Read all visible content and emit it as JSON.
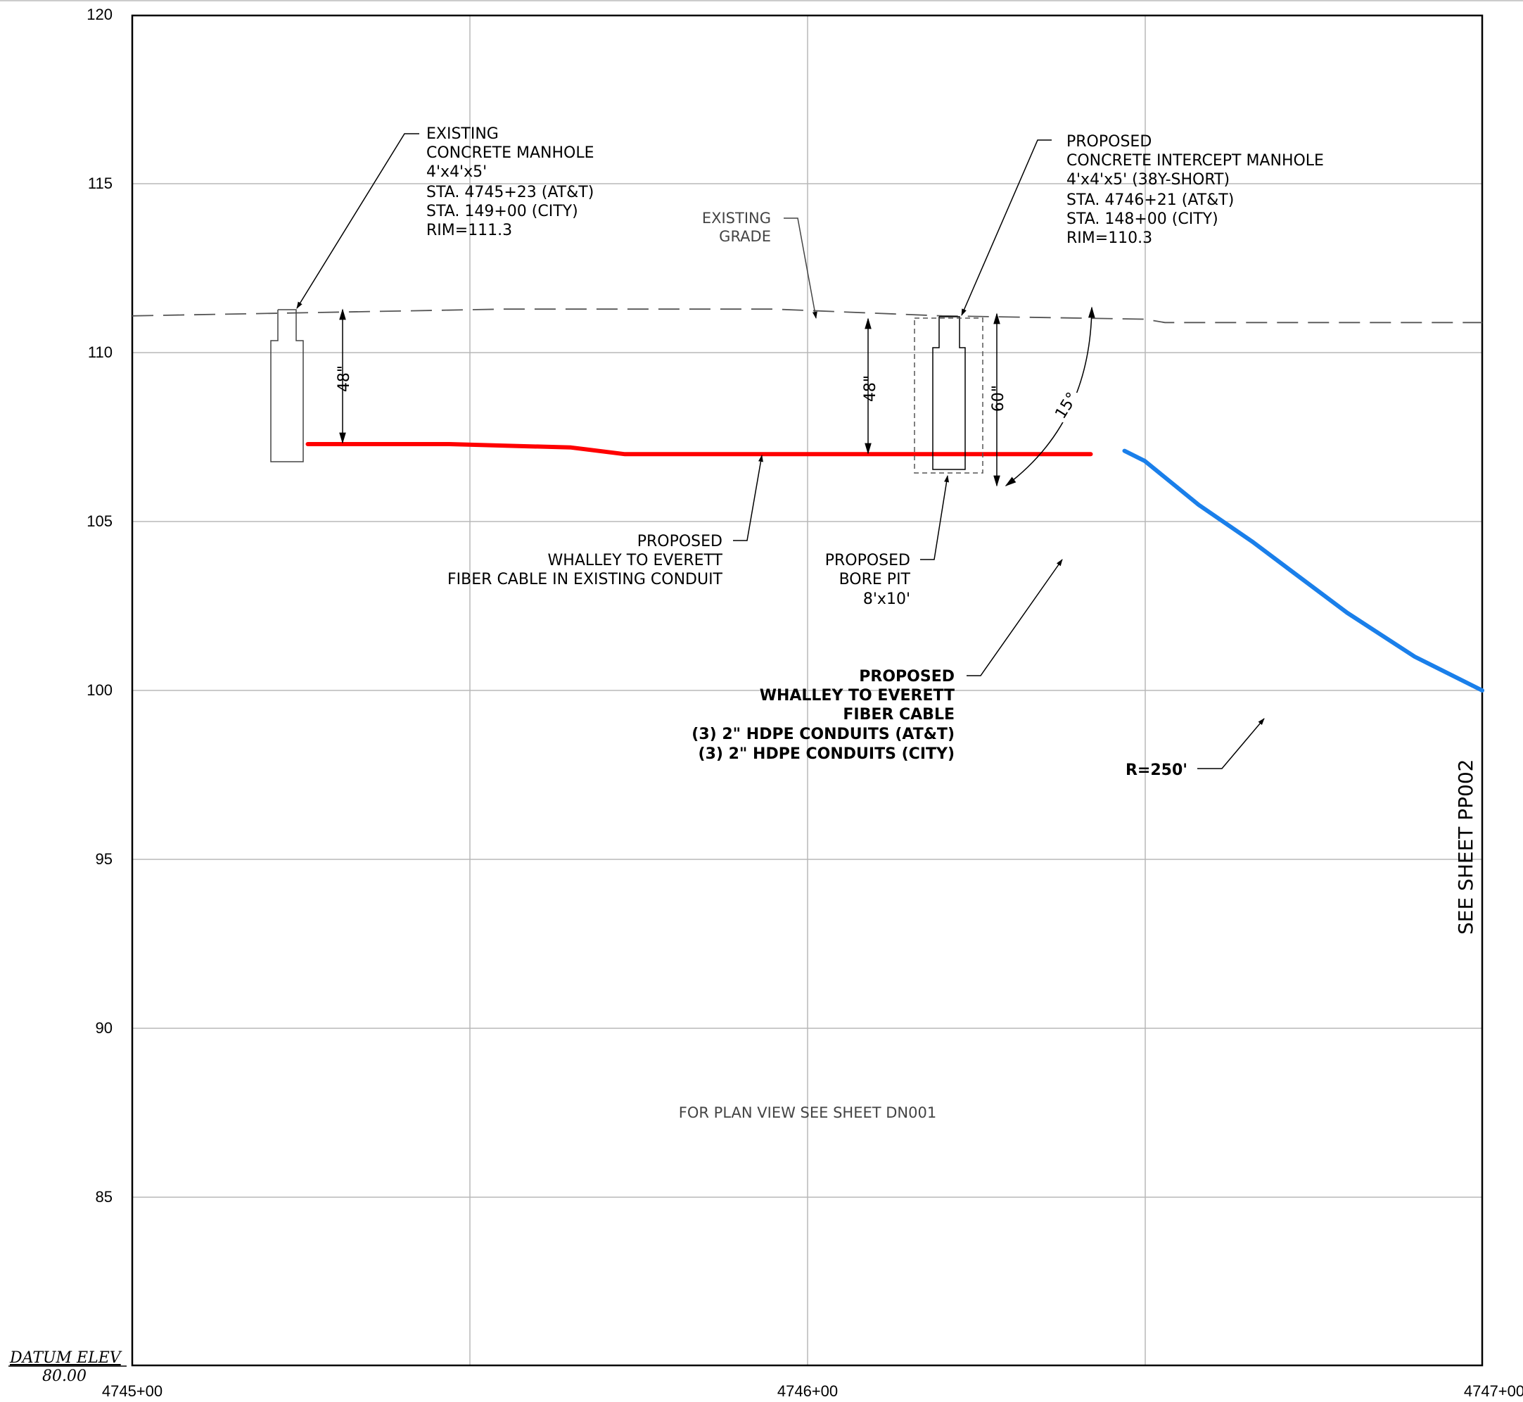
{
  "chart_data": {
    "type": "line",
    "x_range": [
      "4745+00",
      "4747+00"
    ],
    "y_range": [
      80,
      120
    ],
    "x_ticks": [
      "4745+00",
      "4746+00",
      "4747+00"
    ],
    "y_ticks": [
      "120",
      "115",
      "110",
      "105",
      "100",
      "95",
      "90",
      "85"
    ],
    "datum": {
      "label": "DATUM ELEV",
      "value": "80.00"
    },
    "grid": true,
    "series": [
      {
        "role": "existing-grade",
        "color": "#555555",
        "points": [
          [
            4745.0,
            111.1
          ],
          [
            4745.55,
            111.3
          ],
          [
            4745.95,
            111.3
          ],
          [
            4746.2,
            111.1
          ],
          [
            4746.5,
            111.0
          ],
          [
            4746.53,
            110.9
          ],
          [
            4746.85,
            110.9
          ],
          [
            4747.0,
            110.9
          ]
        ]
      },
      {
        "role": "cable-existing-conduit",
        "color": "#ff0000",
        "points": [
          [
            4745.26,
            107.3
          ],
          [
            4745.47,
            107.3
          ],
          [
            4745.65,
            107.2
          ],
          [
            4745.73,
            107.0
          ],
          [
            4746.42,
            107.0
          ]
        ]
      },
      {
        "role": "cable-hdpe-bore",
        "color": "#1a7fea",
        "points": [
          [
            4746.47,
            107.1
          ],
          [
            4746.5,
            106.8
          ],
          [
            4746.58,
            105.5
          ],
          [
            4746.66,
            104.4
          ],
          [
            4746.72,
            103.5
          ],
          [
            4746.8,
            102.3
          ],
          [
            4746.9,
            101.0
          ],
          [
            4747.0,
            100.0
          ]
        ]
      }
    ]
  },
  "labels": {
    "existing_manhole": [
      "EXISTING",
      "CONCRETE MANHOLE",
      "4'x4'x5'",
      "STA. 4745+23 (AT&T)",
      "STA. 149+00 (CITY)",
      "RIM=111.3"
    ],
    "proposed_manhole": [
      "PROPOSED",
      "CONCRETE INTERCEPT MANHOLE",
      "4'x4'x5' (38Y-SHORT)",
      "STA. 4746+21 (AT&T)",
      "STA. 148+00 (CITY)",
      "RIM=110.3"
    ],
    "existing_grade": [
      "EXISTING",
      "GRADE"
    ],
    "cable_existing": [
      "PROPOSED",
      "WHALLEY TO EVERETT",
      "FIBER CABLE IN EXISTING CONDUIT"
    ],
    "bore_pit": [
      "PROPOSED",
      "BORE PIT",
      "8'x10'"
    ],
    "cable_hdpe": [
      "PROPOSED",
      "WHALLEY TO EVERETT",
      "FIBER CABLE",
      "(3) 2\" HDPE CONDUITS (AT&T)",
      "(3) 2\" HDPE CONDUITS (CITY)"
    ],
    "radius": "R=250'",
    "dim_48_left": "48\"",
    "dim_48_mid": "48\"",
    "dim_60": "60\"",
    "dim_angle": "15°",
    "see_sheet": "SEE SHEET PP002",
    "plan_view": "FOR PLAN VIEW SEE SHEET DN001"
  }
}
